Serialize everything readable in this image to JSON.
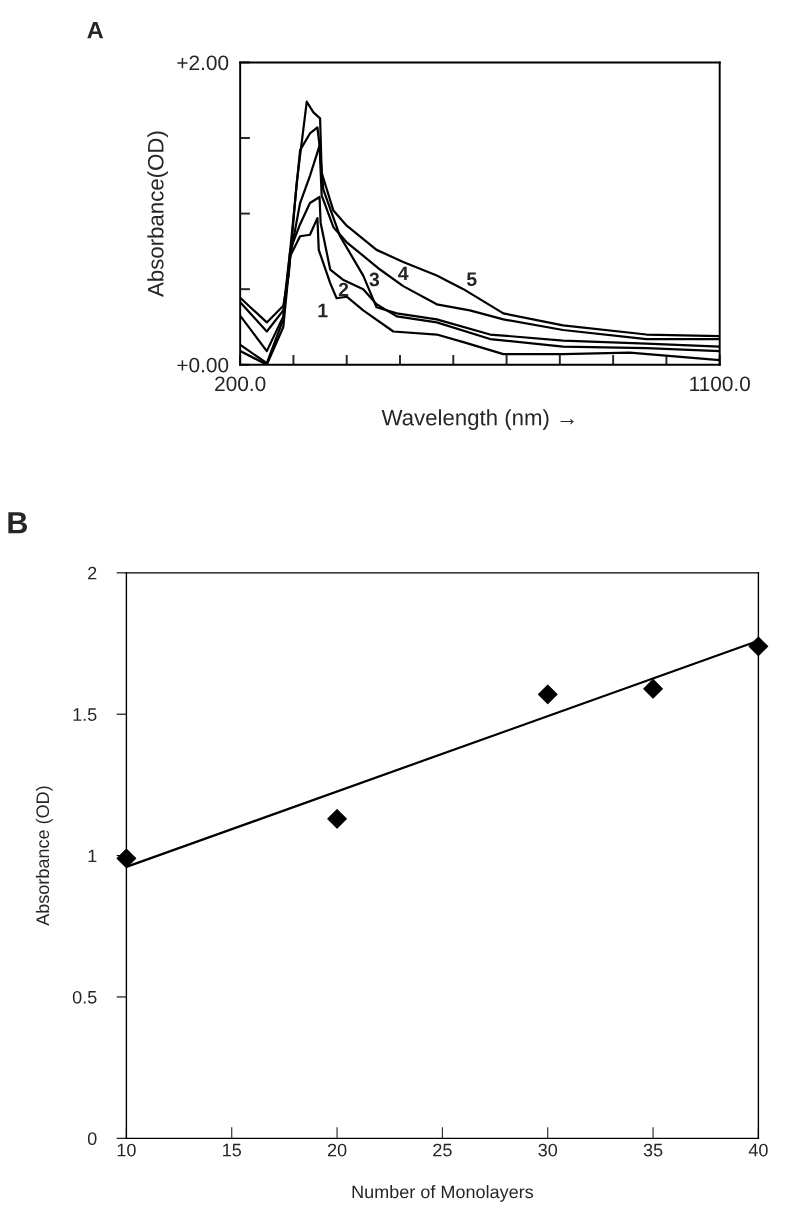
{
  "chart_data": [
    {
      "type": "line",
      "title": "A",
      "xlabel": "Wavelength (nm) →",
      "ylabel": "Absorbance(OD)",
      "xlim": [
        200,
        1100
      ],
      "ylim": [
        0,
        2
      ],
      "xticks": [
        {
          "value": 200,
          "label": "200.0"
        },
        {
          "value": 300,
          "label": null
        },
        {
          "value": 400,
          "label": null
        },
        {
          "value": 500,
          "label": null
        },
        {
          "value": 600,
          "label": null
        },
        {
          "value": 700,
          "label": null
        },
        {
          "value": 800,
          "label": null
        },
        {
          "value": 900,
          "label": null
        },
        {
          "value": 1000,
          "label": null
        },
        {
          "value": 1100,
          "label": "1100.0"
        }
      ],
      "yticks": [
        {
          "value": 0,
          "label": "+0.00"
        },
        {
          "value": 0.5,
          "label": null
        },
        {
          "value": 1,
          "label": null
        },
        {
          "value": 1.5,
          "label": null
        },
        {
          "value": 2,
          "label": "+2.00"
        }
      ],
      "grid": false,
      "series": [
        {
          "color": "#000000",
          "x": [
            201,
            250,
            281,
            294,
            312.5,
            331,
            345,
            347.5,
            369,
            381,
            400,
            431,
            487.5,
            569,
            619,
            694,
            806,
            931,
            1100
          ],
          "values": [
            0.09,
            0.0,
            0.25,
            0.72,
            0.85,
            0.86,
            0.97,
            0.76,
            0.54,
            0.44,
            0.45,
            0.36,
            0.22,
            0.2,
            0.15,
            0.07,
            0.07,
            0.08,
            0.03
          ]
        },
        {
          "color": "#000000",
          "x": [
            201,
            250,
            281,
            294,
            312.5,
            331,
            349,
            351,
            369,
            394,
            431,
            456,
            494,
            569,
            669,
            806,
            962.5,
            1100
          ],
          "values": [
            0.13,
            0.01,
            0.3,
            0.76,
            0.93,
            1.07,
            1.11,
            0.94,
            0.63,
            0.56,
            0.5,
            0.4,
            0.32,
            0.28,
            0.17,
            0.12,
            0.11,
            0.09
          ]
        },
        {
          "color": "#000000",
          "x": [
            201,
            250,
            281,
            294,
            312.5,
            331,
            349,
            356,
            387.5,
            431,
            456,
            494,
            569,
            669,
            806,
            962.5,
            1100
          ],
          "values": [
            0.32,
            0.09,
            0.32,
            0.72,
            1.07,
            1.25,
            1.45,
            1.16,
            0.85,
            0.59,
            0.38,
            0.34,
            0.3,
            0.2,
            0.16,
            0.14,
            0.12
          ]
        },
        {
          "color": "#000000",
          "x": [
            201,
            250,
            281,
            294,
            312.5,
            331,
            345,
            349,
            353,
            375,
            400,
            462.5,
            506,
            569,
            631,
            694,
            806,
            962.5,
            1100
          ],
          "values": [
            0.41,
            0.22,
            0.36,
            0.76,
            1.42,
            1.53,
            1.57,
            1.45,
            1.12,
            0.91,
            0.81,
            0.63,
            0.52,
            0.4,
            0.36,
            0.3,
            0.23,
            0.17,
            0.17
          ]
        },
        {
          "color": "#000000",
          "x": [
            201,
            250,
            281,
            291,
            306,
            325,
            337.5,
            350,
            353,
            375,
            400,
            456,
            506,
            569,
            619,
            694,
            806,
            962.5,
            1100
          ],
          "values": [
            0.44,
            0.28,
            0.39,
            0.59,
            1.2,
            1.74,
            1.67,
            1.63,
            1.27,
            1.02,
            0.92,
            0.76,
            0.68,
            0.59,
            0.5,
            0.34,
            0.26,
            0.2,
            0.19
          ]
        }
      ],
      "annotations": [
        "1",
        "2",
        "3",
        "4",
        "5"
      ]
    },
    {
      "type": "scatter",
      "title": "B",
      "xlabel": "Number of Monolayers",
      "ylabel": "Absorbance (OD)",
      "xlim": [
        10,
        40
      ],
      "ylim": [
        0,
        2
      ],
      "xticks": [
        10,
        15,
        20,
        25,
        30,
        35,
        40
      ],
      "yticks": [
        0,
        {
          "value": 0.5,
          "label": "0.5"
        },
        1,
        {
          "value": 1.5,
          "label": "1.5"
        },
        2
      ],
      "grid": false,
      "series": [
        {
          "type": "scatter",
          "color": "#000000",
          "marker": "diamond",
          "x": [
            10,
            20,
            30,
            35,
            40
          ],
          "values": [
            0.99,
            1.13,
            1.57,
            1.59,
            1.74
          ]
        },
        {
          "type": "line",
          "color": "#000000",
          "x": [
            10,
            40
          ],
          "values": [
            0.96,
            1.76
          ]
        }
      ]
    }
  ]
}
